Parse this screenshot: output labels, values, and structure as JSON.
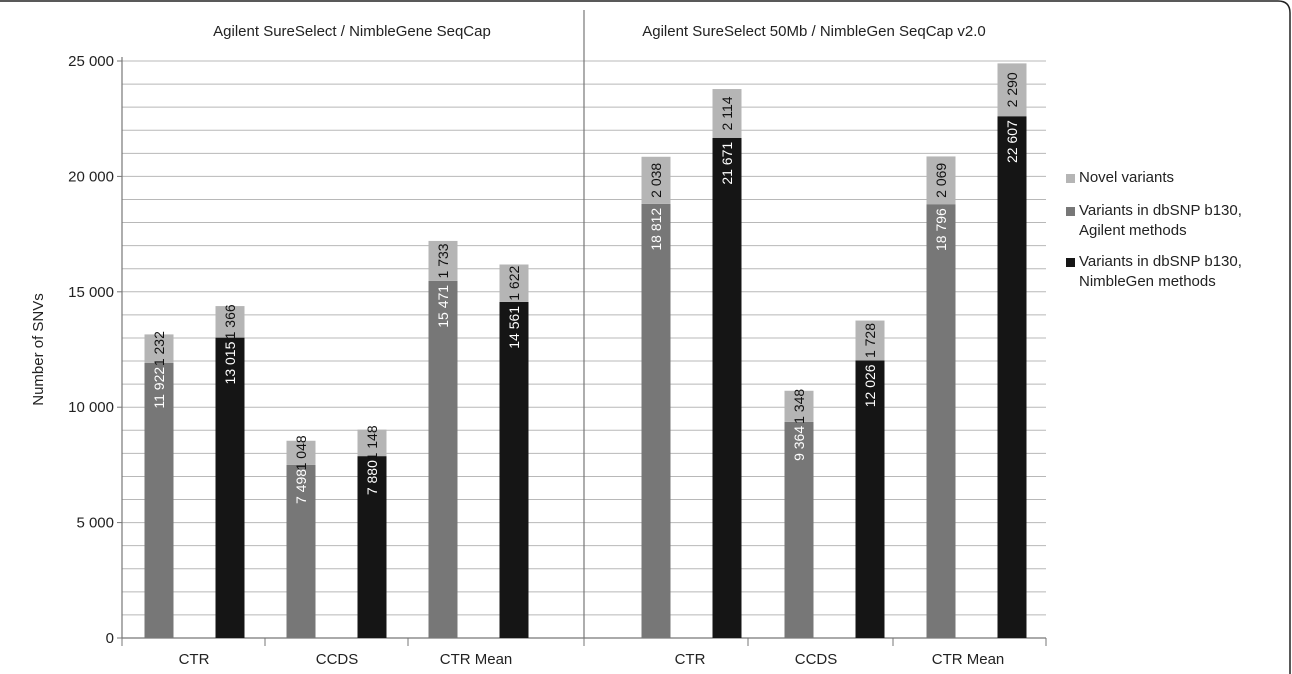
{
  "chart_data": {
    "type": "bar",
    "stacked": true,
    "ylabel": "Number of SNVs",
    "ylim": [
      0,
      25000
    ],
    "yticks": [
      0,
      5000,
      10000,
      15000,
      20000,
      25000
    ],
    "ytick_labels": [
      "0",
      "5 000",
      "10 000",
      "15 000",
      "20 000",
      "25 000"
    ],
    "grid": "horizontal, every 1 000",
    "legend_position": "right",
    "panels": [
      {
        "title": "Agilent  SureSelect / NimbleGene  SeqCap",
        "categories": [
          "CTR",
          "CCDS",
          "CTR Mean"
        ],
        "bars": [
          {
            "category": "CTR",
            "series": "Variants in dbSNP b130, Agilent methods",
            "base": 11922,
            "base_label": "11 922",
            "novel": 1232,
            "novel_label": "1 232"
          },
          {
            "category": "CTR",
            "series": "Variants in dbSNP b130, NimbleGen methods",
            "base": 13015,
            "base_label": "13 015",
            "novel": 1366,
            "novel_label": "1 366"
          },
          {
            "category": "CCDS",
            "series": "Variants in dbSNP b130, Agilent methods",
            "base": 7498,
            "base_label": "7 498",
            "novel": 1048,
            "novel_label": "1 048"
          },
          {
            "category": "CCDS",
            "series": "Variants in dbSNP b130, NimbleGen methods",
            "base": 7880,
            "base_label": "7 880",
            "novel": 1148,
            "novel_label": "1 148"
          },
          {
            "category": "CTR Mean",
            "series": "Variants in dbSNP b130, Agilent methods",
            "base": 15471,
            "base_label": "15 471",
            "novel": 1733,
            "novel_label": "1 733"
          },
          {
            "category": "CTR Mean",
            "series": "Variants in dbSNP b130, NimbleGen methods",
            "base": 14561,
            "base_label": "14 561",
            "novel": 1622,
            "novel_label": "1 622"
          }
        ]
      },
      {
        "title": "Agilent  SureSelect  50Mb / NimbleGen  SeqCap v2.0",
        "categories": [
          "CTR",
          "CCDS",
          "CTR Mean"
        ],
        "bars": [
          {
            "category": "CTR",
            "series": "Variants in dbSNP b130, Agilent methods",
            "base": 18812,
            "base_label": "18 812",
            "novel": 2038,
            "novel_label": "2 038"
          },
          {
            "category": "CTR",
            "series": "Variants in dbSNP b130, NimbleGen methods",
            "base": 21671,
            "base_label": "21 671",
            "novel": 2114,
            "novel_label": "2 114"
          },
          {
            "category": "CCDS",
            "series": "Variants in dbSNP b130, Agilent methods",
            "base": 9364,
            "base_label": "9 364",
            "novel": 1348,
            "novel_label": "1 348"
          },
          {
            "category": "CCDS",
            "series": "Variants in dbSNP b130, NimbleGen methods",
            "base": 12026,
            "base_label": "12 026",
            "novel": 1728,
            "novel_label": "1 728"
          },
          {
            "category": "CTR Mean",
            "series": "Variants in dbSNP b130, Agilent methods",
            "base": 18796,
            "base_label": "18 796",
            "novel": 2069,
            "novel_label": "2 069"
          },
          {
            "category": "CTR Mean",
            "series": "Variants in dbSNP b130, NimbleGen methods",
            "base": 22607,
            "base_label": "22 607",
            "novel": 2290,
            "novel_label": "2 290"
          }
        ]
      }
    ],
    "legend": [
      {
        "label": "Novel variants",
        "color": "#b5b5b5"
      },
      {
        "label": "Variants in dbSNP b130,\nAgilent methods",
        "color": "#777777"
      },
      {
        "label": "Variants in dbSNP b130,\nNimbleGen methods",
        "color": "#151515"
      }
    ]
  }
}
